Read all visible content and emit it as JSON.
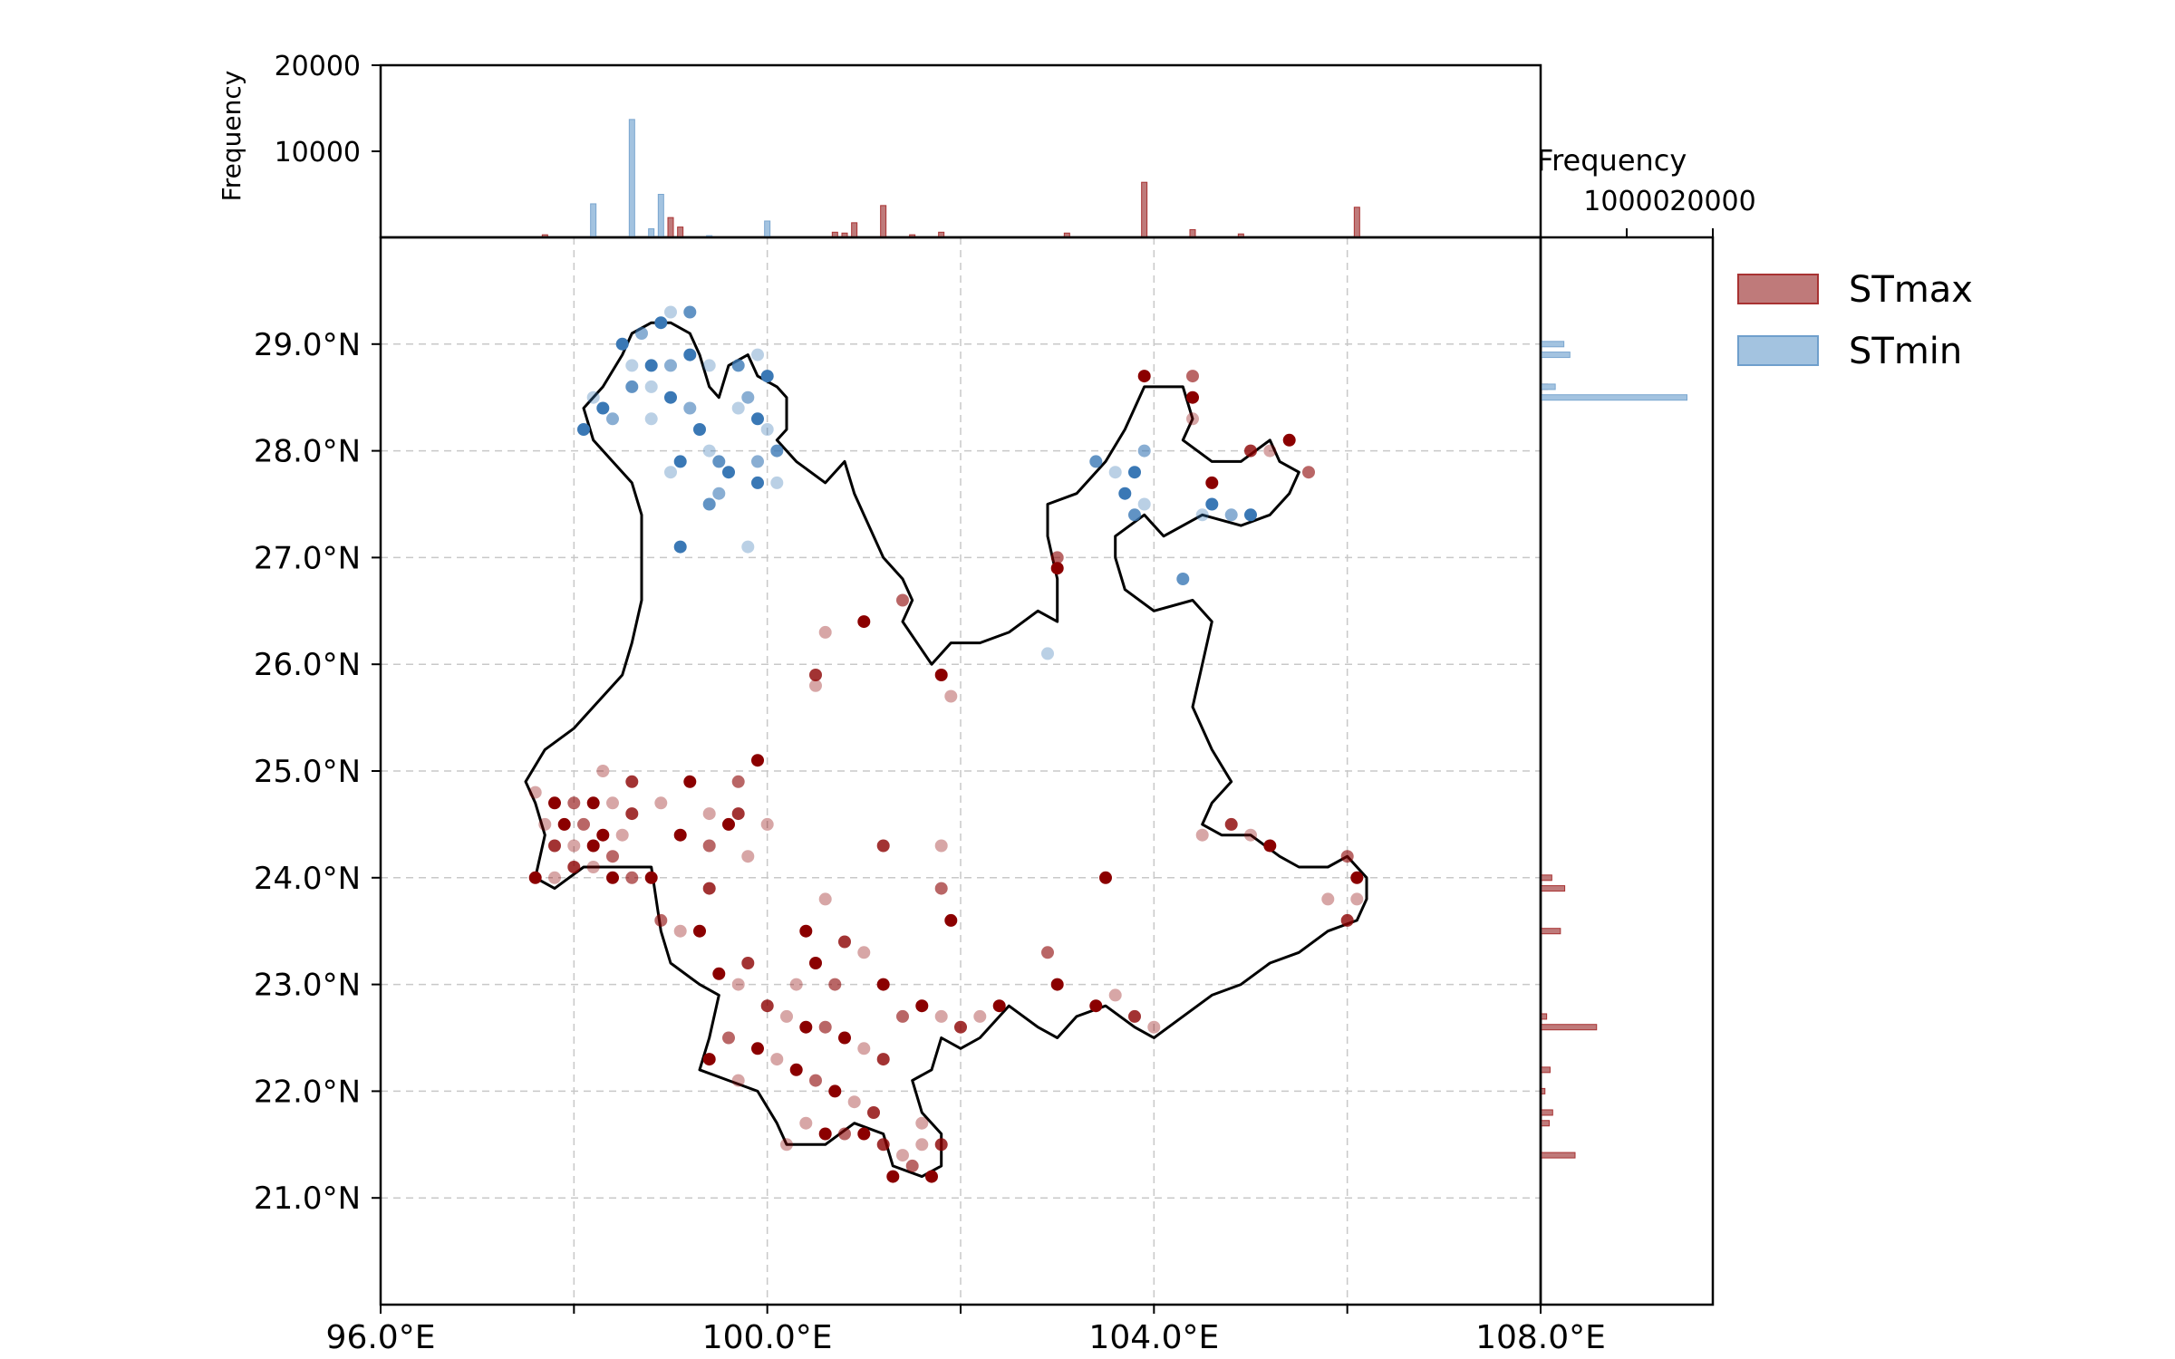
{
  "chart_data": [
    {
      "type": "scatter",
      "panel": "map",
      "xlabel": "",
      "ylabel": "",
      "xlim": [
        96,
        108
      ],
      "ylim": [
        20,
        30
      ],
      "x_ticks": [
        96,
        98,
        100,
        102,
        104,
        106,
        108
      ],
      "x_tick_labels": [
        "96.0°E",
        "",
        "100.0°E",
        "",
        "104.0°E",
        "",
        "108.0°E"
      ],
      "y_ticks": [
        21,
        22,
        23,
        24,
        25,
        26,
        27,
        28,
        29
      ],
      "y_tick_labels": [
        "21.0°N",
        "22.0°N",
        "23.0°N",
        "24.0°N",
        "25.0°N",
        "26.0°N",
        "27.0°N",
        "28.0°N",
        "29.0°N"
      ],
      "grid": true,
      "legend_position": "right, outside top",
      "series": [
        {
          "name": "STmax",
          "color": "#8b0000",
          "points": [
            [
              97.6,
              24.8
            ],
            [
              97.8,
              24.7
            ],
            [
              98.0,
              24.7
            ],
            [
              98.2,
              24.7
            ],
            [
              98.4,
              24.7
            ],
            [
              98.6,
              24.6
            ],
            [
              97.7,
              24.5
            ],
            [
              97.9,
              24.5
            ],
            [
              98.1,
              24.5
            ],
            [
              98.3,
              24.4
            ],
            [
              98.5,
              24.4
            ],
            [
              97.8,
              24.3
            ],
            [
              98.0,
              24.3
            ],
            [
              98.2,
              24.3
            ],
            [
              98.4,
              24.2
            ],
            [
              97.6,
              24.0
            ],
            [
              97.8,
              24.0
            ],
            [
              98.0,
              24.1
            ],
            [
              98.2,
              24.1
            ],
            [
              98.4,
              24.0
            ],
            [
              98.6,
              24.0
            ],
            [
              98.8,
              24.0
            ],
            [
              98.3,
              25.0
            ],
            [
              98.6,
              24.9
            ],
            [
              98.9,
              24.7
            ],
            [
              99.1,
              24.4
            ],
            [
              99.4,
              24.3
            ],
            [
              99.6,
              24.5
            ],
            [
              99.8,
              24.2
            ],
            [
              99.4,
              23.9
            ],
            [
              99.1,
              23.5
            ],
            [
              99.3,
              23.5
            ],
            [
              98.9,
              23.6
            ],
            [
              99.5,
              23.1
            ],
            [
              99.7,
              23.0
            ],
            [
              99.7,
              24.6
            ],
            [
              100.0,
              24.5
            ],
            [
              99.9,
              25.1
            ],
            [
              99.7,
              24.9
            ],
            [
              99.2,
              24.9
            ],
            [
              99.4,
              24.6
            ],
            [
              100.0,
              22.8
            ],
            [
              100.2,
              22.7
            ],
            [
              100.4,
              22.6
            ],
            [
              100.6,
              22.6
            ],
            [
              100.8,
              22.5
            ],
            [
              101.0,
              22.4
            ],
            [
              101.2,
              22.3
            ],
            [
              100.1,
              22.3
            ],
            [
              100.3,
              22.2
            ],
            [
              100.5,
              22.1
            ],
            [
              100.7,
              22.0
            ],
            [
              100.9,
              21.9
            ],
            [
              101.1,
              21.8
            ],
            [
              100.4,
              21.7
            ],
            [
              100.6,
              21.6
            ],
            [
              100.8,
              21.6
            ],
            [
              101.0,
              21.6
            ],
            [
              100.2,
              21.5
            ],
            [
              101.2,
              21.5
            ],
            [
              101.4,
              21.4
            ],
            [
              101.3,
              21.2
            ],
            [
              101.5,
              21.3
            ],
            [
              101.7,
              21.2
            ],
            [
              101.6,
              21.5
            ],
            [
              101.8,
              21.5
            ],
            [
              101.6,
              21.7
            ],
            [
              99.4,
              22.3
            ],
            [
              99.6,
              22.5
            ],
            [
              99.9,
              22.4
            ],
            [
              99.7,
              22.1
            ],
            [
              99.8,
              23.2
            ],
            [
              100.3,
              23.0
            ],
            [
              100.5,
              23.2
            ],
            [
              100.7,
              23.0
            ],
            [
              100.4,
              23.5
            ],
            [
              100.6,
              23.8
            ],
            [
              100.8,
              23.4
            ],
            [
              101.0,
              23.3
            ],
            [
              101.2,
              23.0
            ],
            [
              101.4,
              22.7
            ],
            [
              101.6,
              22.8
            ],
            [
              101.8,
              22.7
            ],
            [
              102.0,
              22.6
            ],
            [
              102.2,
              22.7
            ],
            [
              102.4,
              22.8
            ],
            [
              101.8,
              23.9
            ],
            [
              101.9,
              23.6
            ],
            [
              100.6,
              26.3
            ],
            [
              100.5,
              25.9
            ],
            [
              100.5,
              25.8
            ],
            [
              101.0,
              26.4
            ],
            [
              101.4,
              26.6
            ],
            [
              101.8,
              25.9
            ],
            [
              101.9,
              25.7
            ],
            [
              101.2,
              24.3
            ],
            [
              101.8,
              24.3
            ],
            [
              103.0,
              23.0
            ],
            [
              102.9,
              23.3
            ],
            [
              103.4,
              22.8
            ],
            [
              103.6,
              22.9
            ],
            [
              103.8,
              22.7
            ],
            [
              104.0,
              22.6
            ],
            [
              103.0,
              26.9
            ],
            [
              103.0,
              27.0
            ],
            [
              103.5,
              24.0
            ],
            [
              104.5,
              24.4
            ],
            [
              104.8,
              24.5
            ],
            [
              105.0,
              24.4
            ],
            [
              105.2,
              24.3
            ],
            [
              106.0,
              24.2
            ],
            [
              106.1,
              24.0
            ],
            [
              106.1,
              23.8
            ],
            [
              106.0,
              23.6
            ],
            [
              105.8,
              23.8
            ],
            [
              103.9,
              28.7
            ],
            [
              104.4,
              28.7
            ],
            [
              104.4,
              28.5
            ],
            [
              104.4,
              28.3
            ],
            [
              105.0,
              28.0
            ],
            [
              105.2,
              28.0
            ],
            [
              105.4,
              28.1
            ],
            [
              105.6,
              27.8
            ],
            [
              104.6,
              27.7
            ]
          ]
        },
        {
          "name": "STmin",
          "color": "#3a78b5",
          "points": [
            [
              98.5,
              29.0
            ],
            [
              98.7,
              29.1
            ],
            [
              98.9,
              29.2
            ],
            [
              99.0,
              29.3
            ],
            [
              99.2,
              29.3
            ],
            [
              98.6,
              28.8
            ],
            [
              98.8,
              28.8
            ],
            [
              99.0,
              28.8
            ],
            [
              99.2,
              28.9
            ],
            [
              99.4,
              28.8
            ],
            [
              98.6,
              28.6
            ],
            [
              98.8,
              28.6
            ],
            [
              99.0,
              28.5
            ],
            [
              99.2,
              28.4
            ],
            [
              99.3,
              28.2
            ],
            [
              99.4,
              28.0
            ],
            [
              99.5,
              27.9
            ],
            [
              98.2,
              28.5
            ],
            [
              98.3,
              28.4
            ],
            [
              98.4,
              28.3
            ],
            [
              98.1,
              28.2
            ],
            [
              98.8,
              28.3
            ],
            [
              99.7,
              28.8
            ],
            [
              99.9,
              28.9
            ],
            [
              100.0,
              28.7
            ],
            [
              99.8,
              28.5
            ],
            [
              99.9,
              28.3
            ],
            [
              100.0,
              28.2
            ],
            [
              100.1,
              28.0
            ],
            [
              99.7,
              28.4
            ],
            [
              99.6,
              27.8
            ],
            [
              99.5,
              27.6
            ],
            [
              99.1,
              27.9
            ],
            [
              99.0,
              27.8
            ],
            [
              99.4,
              27.5
            ],
            [
              100.1,
              27.7
            ],
            [
              99.9,
              27.7
            ],
            [
              99.9,
              27.9
            ],
            [
              99.1,
              27.1
            ],
            [
              99.8,
              27.1
            ],
            [
              103.4,
              27.9
            ],
            [
              103.6,
              27.8
            ],
            [
              103.8,
              27.8
            ],
            [
              103.9,
              28.0
            ],
            [
              103.7,
              27.6
            ],
            [
              103.9,
              27.5
            ],
            [
              103.8,
              27.4
            ],
            [
              104.5,
              27.4
            ],
            [
              104.6,
              27.5
            ],
            [
              104.8,
              27.4
            ],
            [
              105.0,
              27.4
            ],
            [
              102.9,
              26.1
            ],
            [
              104.3,
              26.8
            ]
          ]
        }
      ]
    },
    {
      "type": "bar",
      "panel": "top-marginal-histogram",
      "xlabel": "",
      "ylabel": "Frequency",
      "ylim": [
        0,
        20000
      ],
      "y_tick_labels": [
        "10000",
        "20000"
      ],
      "series": [
        {
          "name": "STmax",
          "color": "#a83232",
          "x": [
            97.7,
            99.0,
            99.1,
            100.7,
            100.8,
            100.9,
            101.2,
            101.5,
            101.8,
            103.1,
            103.9,
            104.4,
            104.9,
            106.1
          ],
          "values": [
            300,
            2300,
            1200,
            600,
            500,
            1700,
            3700,
            300,
            600,
            500,
            6400,
            900,
            400,
            3500
          ]
        },
        {
          "name": "STmin",
          "color": "#7aa6cf",
          "x": [
            98.2,
            98.6,
            98.8,
            98.9,
            99.4,
            100.0
          ],
          "values": [
            3900,
            13700,
            1000,
            5000,
            200,
            1900
          ]
        }
      ]
    },
    {
      "type": "bar",
      "orientation": "horizontal",
      "panel": "right-marginal-histogram",
      "xlabel": "Frequency",
      "xlim": [
        0,
        20000
      ],
      "x_tick_labels": [
        "10000",
        "20000"
      ],
      "series": [
        {
          "name": "STmax",
          "color": "#a83232",
          "y": [
            21.4,
            21.7,
            21.8,
            22.0,
            22.2,
            22.6,
            22.7,
            23.5,
            23.9,
            24.0,
            28.6
          ],
          "values": [
            4000,
            1000,
            1400,
            500,
            1100,
            6500,
            700,
            2300,
            2800,
            1300,
            800
          ]
        },
        {
          "name": "STmin",
          "color": "#7aa6cf",
          "y": [
            28.5,
            28.6,
            28.9,
            29.0
          ],
          "values": [
            17000,
            1700,
            3400,
            2700
          ]
        }
      ]
    }
  ],
  "legend": {
    "items": [
      {
        "label": "STmax",
        "color": "#a83232",
        "fill": "#bf7a7a"
      },
      {
        "label": "STmin",
        "color": "#6f9fcc",
        "fill": "#a3c3e0"
      }
    ]
  }
}
